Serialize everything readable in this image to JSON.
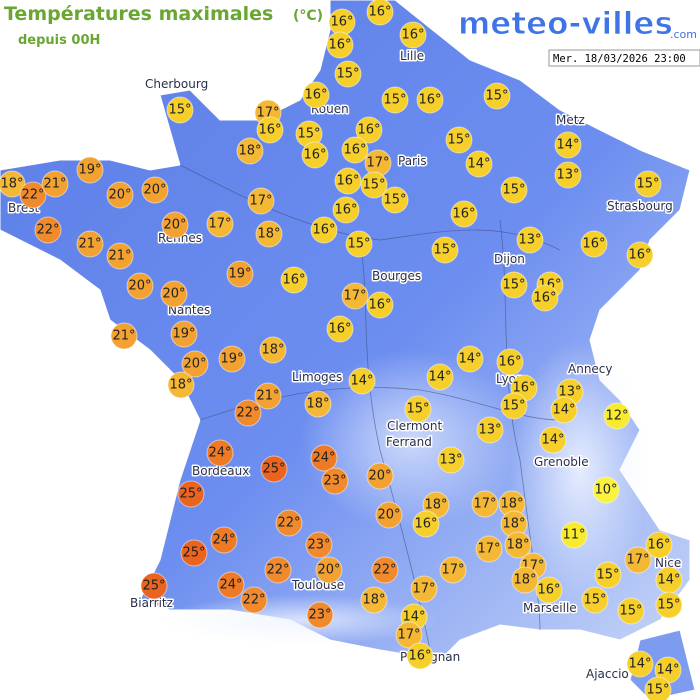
{
  "header": {
    "title": "Températures maximales",
    "unit": "(°C)",
    "subtitle": "depuis 00H",
    "brand": "meteo-villes",
    "brand_suffix": ".com",
    "timestamp": "Mer. 18/03/2026 23:00"
  },
  "cities": [
    "Cherbourg",
    "Rouen",
    "Lille",
    "Paris",
    "Metz",
    "Strasbourg",
    "Brest",
    "Rennes",
    "Nantes",
    "Bourges",
    "Dijon",
    "Limoges",
    "Lyon",
    "Annecy",
    "Clermont",
    "Ferrand",
    "Grenoble",
    "Bordeaux",
    "Toulouse",
    "Biarritz",
    "Marseille",
    "Nice",
    "Perpignan",
    "Ajaccio"
  ],
  "markers": [
    {
      "value": 16,
      "label": "16°"
    },
    {
      "value": 16,
      "label": "16°"
    },
    {
      "value": 16,
      "label": "16°"
    },
    {
      "value": 16,
      "label": "16°"
    },
    {
      "value": 15,
      "label": "15°"
    },
    {
      "value": 16,
      "label": "16°"
    },
    {
      "value": 15,
      "label": "15°"
    },
    {
      "value": 17,
      "label": "17°"
    },
    {
      "value": 16,
      "label": "16°"
    },
    {
      "value": 15,
      "label": "15°"
    },
    {
      "value": 15,
      "label": "15°"
    },
    {
      "value": 16,
      "label": "16°"
    },
    {
      "value": 15,
      "label": "15°"
    },
    {
      "value": 16,
      "label": "16°"
    },
    {
      "value": 18,
      "label": "18°"
    },
    {
      "value": 16,
      "label": "16°"
    },
    {
      "value": 16,
      "label": "16°"
    },
    {
      "value": 17,
      "label": "17°"
    },
    {
      "value": 15,
      "label": "15°"
    },
    {
      "value": 15,
      "label": "15°"
    },
    {
      "value": 14,
      "label": "14°"
    },
    {
      "value": 14,
      "label": "14°"
    },
    {
      "value": 13,
      "label": "13°"
    },
    {
      "value": 15,
      "label": "15°"
    },
    {
      "value": 18,
      "label": "18°"
    },
    {
      "value": 22,
      "label": "22°"
    },
    {
      "value": 21,
      "label": "21°"
    },
    {
      "value": 19,
      "label": "19°"
    },
    {
      "value": 20,
      "label": "20°"
    },
    {
      "value": 20,
      "label": "20°"
    },
    {
      "value": 16,
      "label": "16°"
    },
    {
      "value": 15,
      "label": "15°"
    },
    {
      "value": 15,
      "label": "15°"
    },
    {
      "value": 17,
      "label": "17°"
    },
    {
      "value": 16,
      "label": "16°"
    },
    {
      "value": 16,
      "label": "16°"
    },
    {
      "value": 22,
      "label": "22°"
    },
    {
      "value": 20,
      "label": "20°"
    },
    {
      "value": 17,
      "label": "17°"
    },
    {
      "value": 18,
      "label": "18°"
    },
    {
      "value": 16,
      "label": "16°"
    },
    {
      "value": 15,
      "label": "15°"
    },
    {
      "value": 13,
      "label": "13°"
    },
    {
      "value": 21,
      "label": "21°"
    },
    {
      "value": 21,
      "label": "21°"
    },
    {
      "value": 16,
      "label": "16°"
    },
    {
      "value": 16,
      "label": "16°"
    },
    {
      "value": 15,
      "label": "15°"
    },
    {
      "value": 19,
      "label": "19°"
    },
    {
      "value": 16,
      "label": "16°"
    },
    {
      "value": 20,
      "label": "20°"
    },
    {
      "value": 20,
      "label": "20°"
    },
    {
      "value": 15,
      "label": "15°"
    },
    {
      "value": 16,
      "label": "16°"
    },
    {
      "value": 16,
      "label": "16°"
    },
    {
      "value": 17,
      "label": "17°"
    },
    {
      "value": 16,
      "label": "16°"
    },
    {
      "value": 21,
      "label": "21°"
    },
    {
      "value": 19,
      "label": "19°"
    },
    {
      "value": 16,
      "label": "16°"
    },
    {
      "value": 18,
      "label": "18°"
    },
    {
      "value": 14,
      "label": "14°"
    },
    {
      "value": 16,
      "label": "16°"
    },
    {
      "value": 20,
      "label": "20°"
    },
    {
      "value": 19,
      "label": "19°"
    },
    {
      "value": 14,
      "label": "14°"
    },
    {
      "value": 14,
      "label": "14°"
    },
    {
      "value": 18,
      "label": "18°"
    },
    {
      "value": 16,
      "label": "16°"
    },
    {
      "value": 13,
      "label": "13°"
    },
    {
      "value": 21,
      "label": "21°"
    },
    {
      "value": 15,
      "label": "15°"
    },
    {
      "value": 14,
      "label": "14°"
    },
    {
      "value": 22,
      "label": "22°"
    },
    {
      "value": 18,
      "label": "18°"
    },
    {
      "value": 15,
      "label": "15°"
    },
    {
      "value": 12,
      "label": "12°"
    },
    {
      "value": 13,
      "label": "13°"
    },
    {
      "value": 14,
      "label": "14°"
    },
    {
      "value": 24,
      "label": "24°"
    },
    {
      "value": 24,
      "label": "24°"
    },
    {
      "value": 13,
      "label": "13°"
    },
    {
      "value": 25,
      "label": "25°"
    },
    {
      "value": 23,
      "label": "23°"
    },
    {
      "value": 20,
      "label": "20°"
    },
    {
      "value": 10,
      "label": "10°"
    },
    {
      "value": 25,
      "label": "25°"
    },
    {
      "value": 18,
      "label": "18°"
    },
    {
      "value": 17,
      "label": "17°"
    },
    {
      "value": 18,
      "label": "18°"
    },
    {
      "value": 20,
      "label": "20°"
    },
    {
      "value": 16,
      "label": "16°"
    },
    {
      "value": 18,
      "label": "18°"
    },
    {
      "value": 22,
      "label": "22°"
    },
    {
      "value": 24,
      "label": "24°"
    },
    {
      "value": 11,
      "label": "11°"
    },
    {
      "value": 23,
      "label": "23°"
    },
    {
      "value": 18,
      "label": "18°"
    },
    {
      "value": 17,
      "label": "17°"
    },
    {
      "value": 16,
      "label": "16°"
    },
    {
      "value": 25,
      "label": "25°"
    },
    {
      "value": 17,
      "label": "17°"
    },
    {
      "value": 22,
      "label": "22°"
    },
    {
      "value": 20,
      "label": "20°"
    },
    {
      "value": 22,
      "label": "22°"
    },
    {
      "value": 17,
      "label": "17°"
    },
    {
      "value": 17,
      "label": "17°"
    },
    {
      "value": 18,
      "label": "18°"
    },
    {
      "value": 14,
      "label": "14°"
    },
    {
      "value": 15,
      "label": "15°"
    },
    {
      "value": 16,
      "label": "16°"
    },
    {
      "value": 24,
      "label": "24°"
    },
    {
      "value": 17,
      "label": "17°"
    },
    {
      "value": 25,
      "label": "25°"
    },
    {
      "value": 22,
      "label": "22°"
    },
    {
      "value": 18,
      "label": "18°"
    },
    {
      "value": 15,
      "label": "15°"
    },
    {
      "value": 15,
      "label": "15°"
    },
    {
      "value": 15,
      "label": "15°"
    },
    {
      "value": 14,
      "label": "14°"
    },
    {
      "value": 23,
      "label": "23°"
    },
    {
      "value": 17,
      "label": "17°"
    },
    {
      "value": 16,
      "label": "16°"
    },
    {
      "value": 14,
      "label": "14°"
    },
    {
      "value": 14,
      "label": "14°"
    },
    {
      "value": 15,
      "label": "15°"
    }
  ]
}
